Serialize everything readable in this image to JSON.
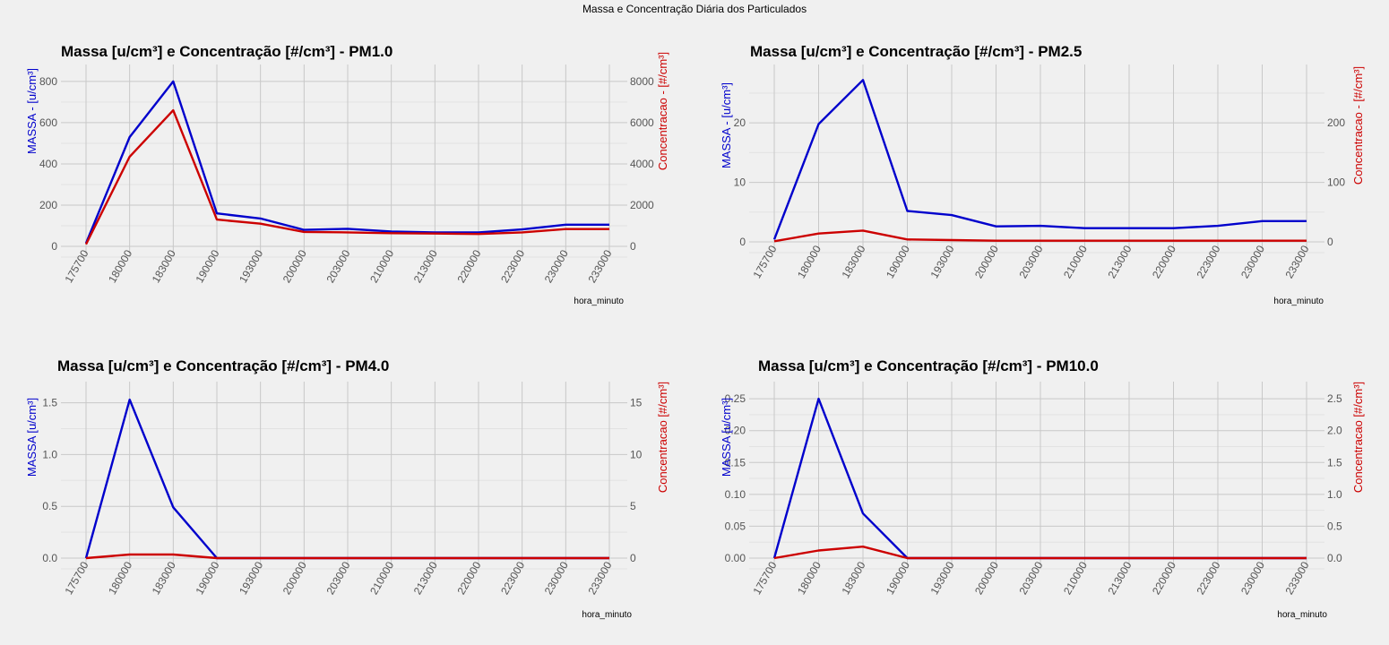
{
  "figure_title": "Massa e Concentração Diária dos Particulados",
  "colors": {
    "panel_background": "#f0f0f0",
    "grid_major": "#c8c8c8",
    "grid_minor": "#e2e2e2",
    "mass_series": "#0000cc",
    "concentration_series": "#cc0000",
    "tick_text": "#555555",
    "title_text": "#000000"
  },
  "chart_data": [
    {
      "type": "line",
      "title": "Massa [u/cm³] e Concentração [#/cm³] - PM1.0",
      "xlabel": "hora_minuto",
      "ylabel_left": "MASSA - [u/cm³]",
      "ylabel_right": "Concentracao - [#/cm³]",
      "categories": [
        "175700",
        "180000",
        "183000",
        "190000",
        "193000",
        "200000",
        "203000",
        "210000",
        "213000",
        "220000",
        "223000",
        "230000",
        "233000"
      ],
      "ylim_left": [
        0,
        830
      ],
      "yticks_left": [
        0,
        200,
        400,
        600,
        800
      ],
      "ylim_right": [
        0,
        8300
      ],
      "yticks_right": [
        0,
        2000,
        4000,
        6000,
        8000
      ],
      "grid": true,
      "series": [
        {
          "axis": "left",
          "values": [
            15,
            530,
            800,
            160,
            135,
            80,
            85,
            72,
            68,
            68,
            82,
            105,
            105
          ]
        },
        {
          "axis": "right",
          "values": [
            100,
            4350,
            6600,
            1300,
            1100,
            700,
            680,
            640,
            620,
            600,
            680,
            840,
            840
          ]
        }
      ]
    },
    {
      "type": "line",
      "title": "Massa [u/cm³] e Concentração [#/cm³] - PM2.5",
      "xlabel": "hora_minuto",
      "ylabel_left": "MASSA - [u/cm³]",
      "ylabel_right": "Concentracao - [#/cm³]",
      "categories": [
        "175700",
        "180000",
        "183000",
        "190000",
        "193000",
        "200000",
        "203000",
        "210000",
        "213000",
        "220000",
        "223000",
        "230000",
        "233000"
      ],
      "ylim_left": [
        0,
        28
      ],
      "yticks_left": [
        0,
        10,
        20
      ],
      "ylim_right": [
        0,
        280
      ],
      "yticks_right": [
        0,
        100,
        200
      ],
      "grid": true,
      "series": [
        {
          "axis": "left",
          "values": [
            0.4,
            19.8,
            27.2,
            5.2,
            4.5,
            2.6,
            2.7,
            2.3,
            2.3,
            2.3,
            2.7,
            3.5,
            3.5
          ]
        },
        {
          "axis": "right",
          "values": [
            1,
            14,
            19,
            4,
            3,
            2,
            2,
            2,
            2,
            2,
            2,
            2,
            2
          ]
        }
      ]
    },
    {
      "type": "line",
      "title": "Massa [u/cm³] e Concentração [#/cm³] - PM4.0",
      "xlabel": "hora_minuto",
      "ylabel_left": "MASSA [u/cm³]",
      "ylabel_right": "Concentracao [#/cm³]",
      "categories": [
        "175700",
        "180000",
        "183000",
        "190000",
        "193000",
        "200000",
        "203000",
        "210000",
        "213000",
        "220000",
        "223000",
        "230000",
        "233000"
      ],
      "ylim_left": [
        0,
        1.6
      ],
      "yticks_left": [
        0.0,
        0.5,
        1.0,
        1.5
      ],
      "tick_format_left": 1,
      "ylim_right": [
        0,
        16
      ],
      "yticks_right": [
        0,
        5,
        10,
        15
      ],
      "grid": true,
      "series": [
        {
          "axis": "left",
          "values": [
            0.0,
            1.53,
            0.49,
            0.0,
            0.0,
            0.0,
            0.0,
            0.0,
            0.0,
            0.0,
            0.0,
            0.0,
            0.0
          ]
        },
        {
          "axis": "right",
          "values": [
            0.0,
            0.35,
            0.35,
            0.0,
            0.0,
            0.0,
            0.0,
            0.0,
            0.0,
            0.0,
            0.0,
            0.0,
            0.0
          ]
        }
      ]
    },
    {
      "type": "line",
      "title": "Massa [u/cm³] e Concentração [#/cm³] - PM10.0",
      "xlabel": "hora_minuto",
      "ylabel_left": "MASSA [u/cm³]",
      "ylabel_right": "Concentracao [#/cm³]",
      "categories": [
        "175700",
        "180000",
        "183000",
        "190000",
        "193000",
        "200000",
        "203000",
        "210000",
        "213000",
        "220000",
        "223000",
        "230000",
        "233000"
      ],
      "ylim_left": [
        0,
        0.26
      ],
      "yticks_left": [
        0.0,
        0.05,
        0.1,
        0.15,
        0.2,
        0.25
      ],
      "tick_format_left": 2,
      "ylim_right": [
        0,
        2.6
      ],
      "yticks_right": [
        0.0,
        0.5,
        1.0,
        1.5,
        2.0,
        2.5
      ],
      "tick_format_right": 1,
      "grid": true,
      "series": [
        {
          "axis": "left",
          "values": [
            0.0,
            0.25,
            0.07,
            0.0,
            0.0,
            0.0,
            0.0,
            0.0,
            0.0,
            0.0,
            0.0,
            0.0,
            0.0
          ]
        },
        {
          "axis": "right",
          "values": [
            0.0,
            0.12,
            0.18,
            0.0,
            0.0,
            0.0,
            0.0,
            0.0,
            0.0,
            0.0,
            0.0,
            0.0,
            0.0
          ]
        }
      ]
    }
  ]
}
